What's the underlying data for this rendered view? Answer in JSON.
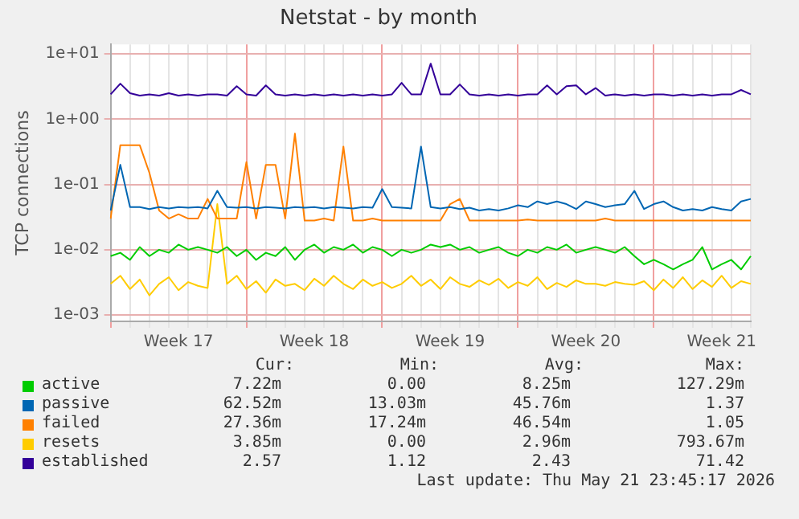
{
  "chart_data": {
    "type": "line",
    "title": "Netstat - by month",
    "ylabel": "TCP connections",
    "log": "y",
    "grid": true,
    "legend": "bottom",
    "marker": "none",
    "line_style": "solid",
    "categories": [
      null,
      null,
      null,
      null,
      null,
      null,
      null,
      "Week 17",
      null,
      null,
      null,
      null,
      null,
      null,
      null,
      null,
      null,
      null,
      null,
      null,
      null,
      "Week 18",
      null,
      null,
      null,
      null,
      null,
      null,
      null,
      null,
      null,
      null,
      null,
      null,
      null,
      "Week 19",
      null,
      null,
      null,
      null,
      null,
      null,
      null,
      null,
      null,
      null,
      null,
      null,
      null,
      "Week 20",
      null,
      null,
      null,
      null,
      null,
      null,
      null,
      null,
      null,
      null,
      null,
      null,
      null,
      "Week 21",
      null,
      null,
      null
    ],
    "ylim": [
      0.0008,
      14
    ],
    "yticks": [
      {
        "value": 0.001,
        "label": "1e-03"
      },
      {
        "value": 0.01,
        "label": "1e-02"
      },
      {
        "value": 0.1,
        "label": "1e-01"
      },
      {
        "value": 1,
        "label": "1e+00"
      },
      {
        "value": 10,
        "label": "1e+01"
      }
    ],
    "series": [
      {
        "name": "active",
        "color": "#00cc00",
        "values": [
          0.008,
          0.009,
          0.007,
          0.011,
          0.008,
          0.01,
          0.009,
          0.012,
          0.01,
          0.011,
          0.01,
          0.009,
          0.011,
          0.008,
          0.01,
          0.007,
          0.009,
          0.008,
          0.011,
          0.007,
          0.01,
          0.012,
          0.009,
          0.011,
          0.01,
          0.012,
          0.009,
          0.011,
          0.01,
          0.008,
          0.01,
          0.009,
          0.01,
          0.012,
          0.011,
          0.012,
          0.01,
          0.011,
          0.009,
          0.01,
          0.011,
          0.009,
          0.008,
          0.01,
          0.009,
          0.011,
          0.01,
          0.012,
          0.009,
          0.01,
          0.011,
          0.01,
          0.009,
          0.011,
          0.008,
          0.006,
          0.007,
          0.006,
          0.005,
          0.006,
          0.007,
          0.011,
          0.005,
          0.006,
          0.007,
          0.005,
          0.008
        ]
      },
      {
        "name": "passive",
        "color": "#0066b3",
        "values": [
          0.04,
          0.2,
          0.045,
          0.045,
          0.042,
          0.045,
          0.043,
          0.045,
          0.044,
          0.045,
          0.043,
          0.08,
          0.045,
          0.044,
          0.045,
          0.043,
          0.045,
          0.044,
          0.043,
          0.045,
          0.044,
          0.045,
          0.043,
          0.045,
          0.044,
          0.043,
          0.045,
          0.044,
          0.085,
          0.045,
          0.044,
          0.043,
          0.38,
          0.045,
          0.043,
          0.045,
          0.042,
          0.044,
          0.04,
          0.042,
          0.04,
          0.043,
          0.048,
          0.045,
          0.055,
          0.05,
          0.055,
          0.05,
          0.042,
          0.055,
          0.05,
          0.045,
          0.048,
          0.05,
          0.08,
          0.042,
          0.05,
          0.055,
          0.045,
          0.04,
          0.042,
          0.04,
          0.045,
          0.042,
          0.04,
          0.055,
          0.06
        ]
      },
      {
        "name": "failed",
        "color": "#ff8000",
        "values": [
          0.03,
          0.4,
          0.4,
          0.4,
          0.15,
          0.04,
          0.03,
          0.035,
          0.03,
          0.03,
          0.06,
          0.03,
          0.03,
          0.03,
          0.22,
          0.03,
          0.2,
          0.2,
          0.03,
          0.6,
          0.028,
          0.028,
          0.03,
          0.028,
          0.38,
          0.028,
          0.028,
          0.03,
          0.028,
          0.028,
          0.028,
          0.028,
          0.028,
          0.028,
          0.028,
          0.05,
          0.06,
          0.028,
          0.028,
          0.028,
          0.028,
          0.028,
          0.028,
          0.029,
          0.028,
          0.028,
          0.028,
          0.028,
          0.028,
          0.028,
          0.028,
          0.03,
          0.028,
          0.028,
          0.028,
          0.028,
          0.028,
          0.028,
          0.028,
          0.028,
          0.028,
          0.028,
          0.028,
          0.028,
          0.028,
          0.028,
          0.028
        ]
      },
      {
        "name": "resets",
        "color": "#ffcc00",
        "values": [
          0.003,
          0.004,
          0.0025,
          0.0035,
          0.002,
          0.003,
          0.0038,
          0.0024,
          0.0032,
          0.0028,
          0.0026,
          0.05,
          0.003,
          0.004,
          0.0025,
          0.0033,
          0.0022,
          0.0035,
          0.0028,
          0.003,
          0.0024,
          0.0036,
          0.0028,
          0.004,
          0.003,
          0.0025,
          0.0035,
          0.0028,
          0.0032,
          0.0026,
          0.003,
          0.004,
          0.0028,
          0.0035,
          0.0025,
          0.0038,
          0.003,
          0.0027,
          0.0034,
          0.0029,
          0.0036,
          0.0026,
          0.0032,
          0.0028,
          0.0038,
          0.0025,
          0.0031,
          0.0027,
          0.0034,
          0.003,
          0.003,
          0.0028,
          0.0032,
          0.003,
          0.0029,
          0.0033,
          0.0024,
          0.0035,
          0.0026,
          0.0038,
          0.0025,
          0.0034,
          0.0027,
          0.004,
          0.0026,
          0.0033,
          0.003
        ]
      },
      {
        "name": "established",
        "color": "#330099",
        "values": [
          2.4,
          3.5,
          2.5,
          2.3,
          2.4,
          2.3,
          2.5,
          2.3,
          2.4,
          2.3,
          2.4,
          2.4,
          2.3,
          3.2,
          2.4,
          2.3,
          3.3,
          2.4,
          2.3,
          2.4,
          2.3,
          2.4,
          2.3,
          2.4,
          2.3,
          2.4,
          2.3,
          2.4,
          2.3,
          2.4,
          3.6,
          2.4,
          2.4,
          7.1,
          2.4,
          2.4,
          3.4,
          2.4,
          2.3,
          2.4,
          2.3,
          2.4,
          2.3,
          2.4,
          2.4,
          3.3,
          2.4,
          3.2,
          3.3,
          2.4,
          3.0,
          2.3,
          2.4,
          2.3,
          2.4,
          2.3,
          2.4,
          2.4,
          2.3,
          2.4,
          2.3,
          2.4,
          2.3,
          2.4,
          2.4,
          2.8,
          2.4
        ]
      }
    ],
    "annotations": [
      "Cur:",
      "Min:",
      "Avg:",
      "Max:",
      "7.22m",
      "0.00",
      "8.25m",
      "127.29m",
      "62.52m",
      "13.03m",
      "45.76m",
      "1.37",
      "27.36m",
      "17.24m",
      "46.54m",
      "1.05",
      "3.85m",
      "0.00",
      "2.96m",
      "793.67m",
      "2.57",
      "1.12",
      "2.43",
      "71.42",
      "Last update: Thu May 21 23:45:17 2026"
    ]
  }
}
